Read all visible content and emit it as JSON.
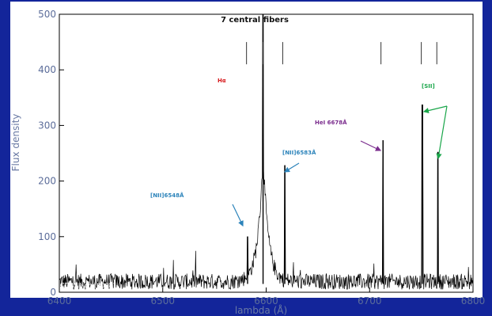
{
  "chart_data": {
    "type": "line",
    "title": "7 central fibers",
    "xlabel": "lambda (Å)",
    "ylabel": "Flux density",
    "xlim": [
      6400,
      6800
    ],
    "ylim": [
      0,
      500
    ],
    "xticks": [
      6400,
      6500,
      6600,
      6700,
      6800
    ],
    "yticks": [
      0,
      100,
      200,
      300,
      400,
      500
    ],
    "grid": false,
    "noise_level": 15,
    "continuum_peak": {
      "center": 6597,
      "width": 6,
      "height": 230
    },
    "series": [
      {
        "color": "#000000",
        "lines": [
          {
            "x": 6582,
            "y": 100
          },
          {
            "x": 6597,
            "y": 500
          },
          {
            "x": 6618,
            "y": 228
          },
          {
            "x": 6713,
            "y": 273
          },
          {
            "x": 6751,
            "y": 337
          },
          {
            "x": 6766,
            "y": 252
          }
        ]
      }
    ],
    "marker_ticks": [
      6581,
      6597,
      6616,
      6711,
      6750,
      6765
    ],
    "annotations": [
      {
        "text": "Hα",
        "color": "#d7191c"
      },
      {
        "text": "[NII]6583Å",
        "color": "#2b83ba"
      },
      {
        "text": "[NII]6548Å",
        "color": "#2b83ba"
      },
      {
        "text": "HeI 6678Å",
        "color": "#7b2d8e"
      },
      {
        "text": "[SII]",
        "color": "#1aa64a"
      }
    ],
    "credit": "CD Wilson (2008)"
  }
}
